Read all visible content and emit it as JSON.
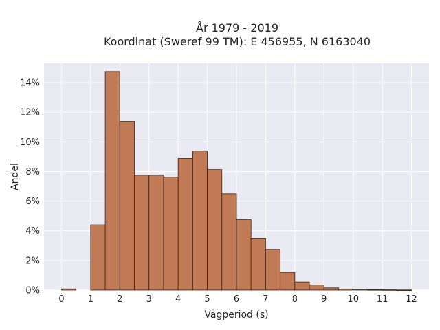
{
  "chart_data": {
    "type": "bar",
    "title_lines": [
      "År 1979 - 2019",
      "Koordinat (Sweref 99 TM): E 456955, N 6163040"
    ],
    "xlabel": "Vågperiod (s)",
    "ylabel": "Andel",
    "xlim": [
      -0.6,
      12.6
    ],
    "ylim": [
      0,
      15.3
    ],
    "xticks": [
      0,
      1,
      2,
      3,
      4,
      5,
      6,
      7,
      8,
      9,
      10,
      11,
      12
    ],
    "yticks": [
      0,
      2,
      4,
      6,
      8,
      10,
      12,
      14
    ],
    "ytick_suffix": "%",
    "grid": true,
    "bin_width": 0.5,
    "bins": [
      {
        "x0": 0.0,
        "value": 0.08
      },
      {
        "x0": 1.0,
        "value": 4.4
      },
      {
        "x0": 1.5,
        "value": 14.75
      },
      {
        "x0": 2.0,
        "value": 11.38
      },
      {
        "x0": 2.5,
        "value": 7.75
      },
      {
        "x0": 3.0,
        "value": 7.75
      },
      {
        "x0": 3.5,
        "value": 7.63
      },
      {
        "x0": 4.0,
        "value": 8.88
      },
      {
        "x0": 4.5,
        "value": 9.38
      },
      {
        "x0": 5.0,
        "value": 8.13
      },
      {
        "x0": 5.5,
        "value": 6.5
      },
      {
        "x0": 6.0,
        "value": 4.75
      },
      {
        "x0": 6.5,
        "value": 3.5
      },
      {
        "x0": 7.0,
        "value": 2.75
      },
      {
        "x0": 7.5,
        "value": 1.2
      },
      {
        "x0": 8.0,
        "value": 0.55
      },
      {
        "x0": 8.5,
        "value": 0.35
      },
      {
        "x0": 9.0,
        "value": 0.15
      },
      {
        "x0": 9.5,
        "value": 0.07
      },
      {
        "x0": 10.0,
        "value": 0.05
      },
      {
        "x0": 10.5,
        "value": 0.03
      },
      {
        "x0": 11.0,
        "value": 0.02
      },
      {
        "x0": 11.5,
        "value": 0.01
      }
    ],
    "colors": {
      "bar_fill": "#c07a55",
      "bar_edge": "#3a2418",
      "plot_background": "#eaeaf2",
      "grid": "#ffffff"
    }
  }
}
